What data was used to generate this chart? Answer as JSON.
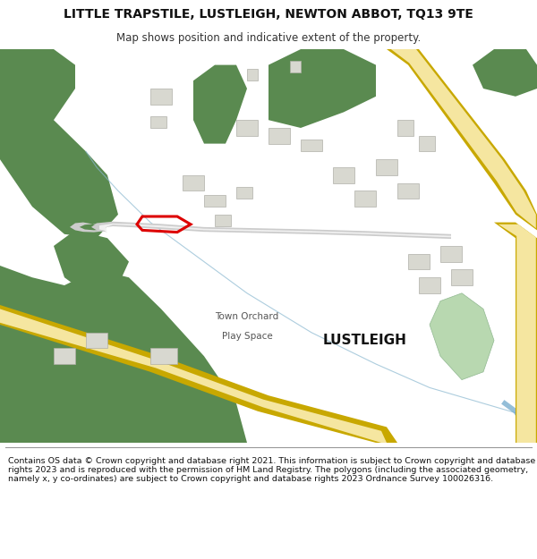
{
  "title_line1": "LITTLE TRAPSTILE, LUSTLEIGH, NEWTON ABBOT, TQ13 9TE",
  "title_line2": "Map shows position and indicative extent of the property.",
  "footer_text": "Contains OS data © Crown copyright and database right 2021. This information is subject to Crown copyright and database rights 2023 and is reproduced with the permission of HM Land Registry. The polygons (including the associated geometry, namely x, y co-ordinates) are subject to Crown copyright and database rights 2023 Ordnance Survey 100026316.",
  "bg_color": "#ffffff",
  "map_bg": "#f2f2ee",
  "green_color": "#5a8a50",
  "road_yellow_fill": "#f5e6a0",
  "road_yellow_border": "#c8a800",
  "road_white_fill": "#f0f0f0",
  "road_white_border": "#cccccc",
  "building_color": "#d8d8d0",
  "building_border": "#b0b0a8",
  "plot_color": "#dd0000",
  "light_green": "#b8d8b0",
  "water_color": "#8ab8d0",
  "title_fontsize": 10,
  "subtitle_fontsize": 8.5,
  "footer_fontsize": 6.8
}
